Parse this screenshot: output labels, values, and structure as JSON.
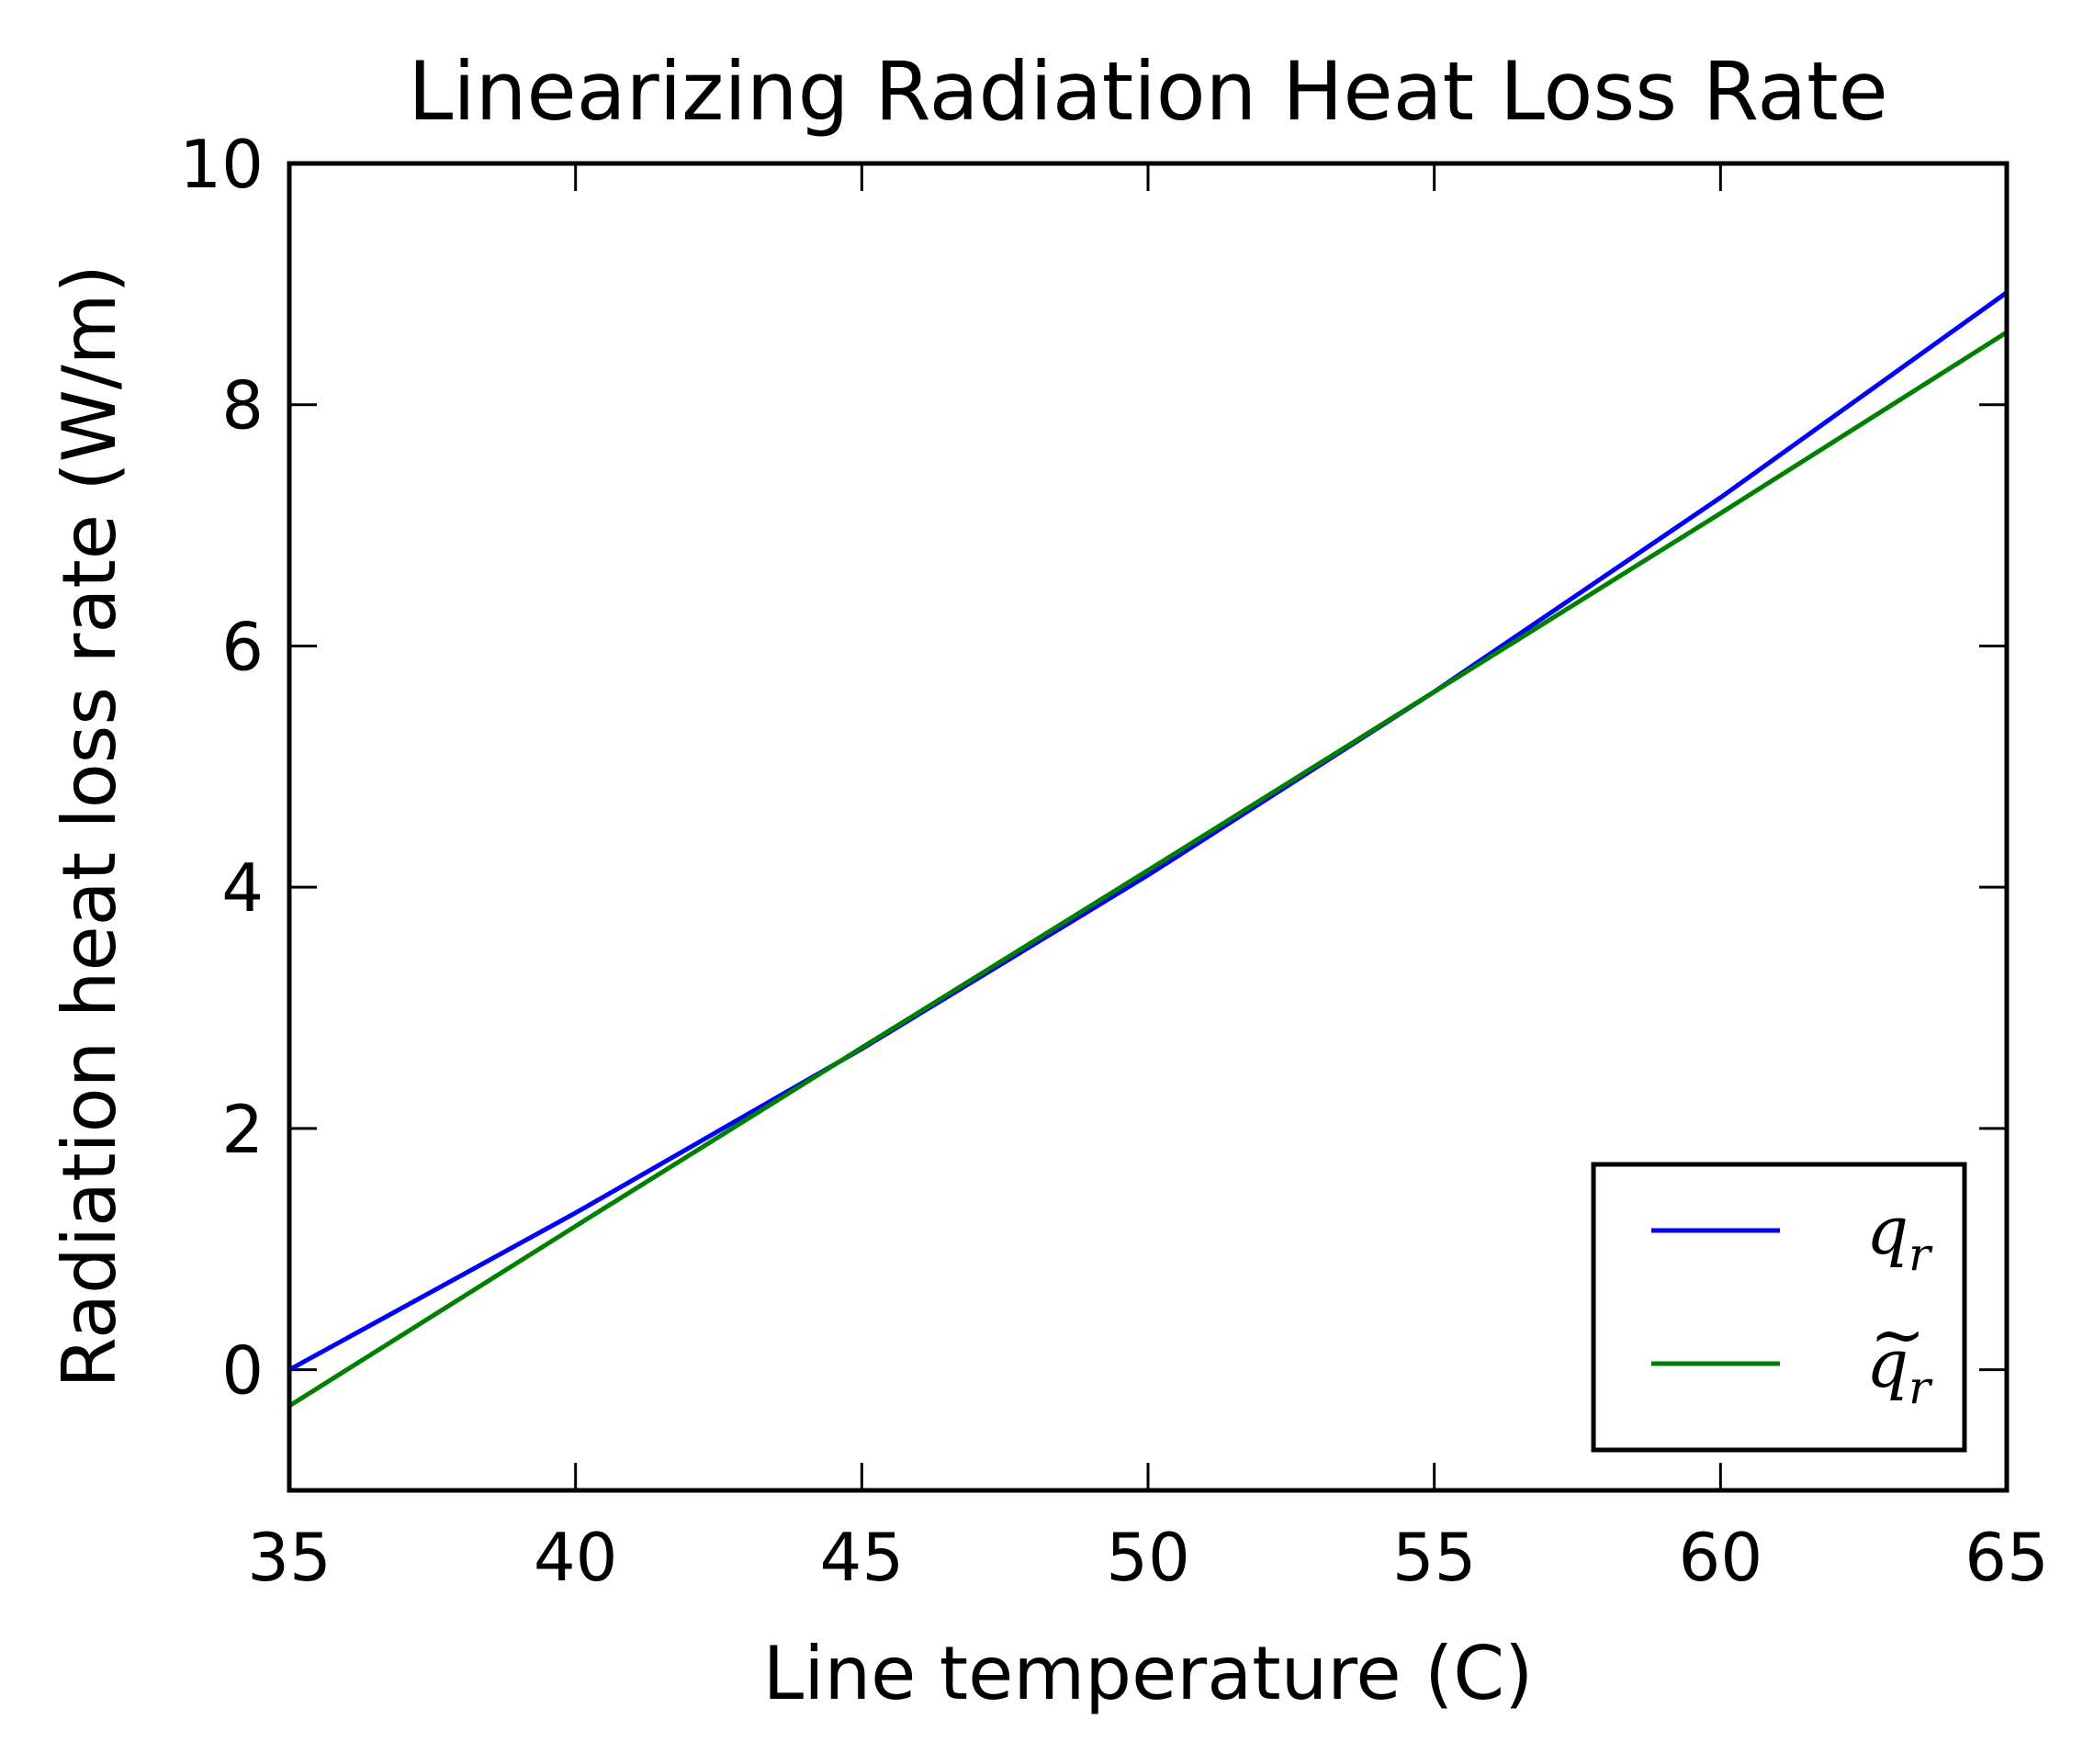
{
  "chart_data": {
    "type": "line",
    "title": "Linearizing Radiation Heat Loss Rate",
    "xlabel": "Line temperature (C)",
    "ylabel": "Radiation heat loss rate (W/m)",
    "xlim": [
      35,
      65
    ],
    "ylim": [
      -1,
      10
    ],
    "xticks": [
      35,
      40,
      45,
      50,
      55,
      60,
      65
    ],
    "yticks": [
      0,
      2,
      4,
      6,
      8,
      10
    ],
    "grid": false,
    "legend_position": "lower-right",
    "series": [
      {
        "label_symbol": "q",
        "label_subscript": "r",
        "label_tilde": false,
        "color": "#0000ff",
        "x": [
          35,
          40,
          45,
          50,
          55,
          60,
          65
        ],
        "y": [
          0.0,
          1.3,
          2.66,
          4.1,
          5.62,
          7.23,
          8.93
        ]
      },
      {
        "label_symbol": "q",
        "label_subscript": "r",
        "label_tilde": true,
        "color": "#008000",
        "x": [
          35,
          40,
          45,
          50,
          55,
          60,
          65
        ],
        "y": [
          -0.3,
          1.19,
          2.67,
          4.14,
          5.62,
          7.1,
          8.6
        ]
      }
    ]
  }
}
